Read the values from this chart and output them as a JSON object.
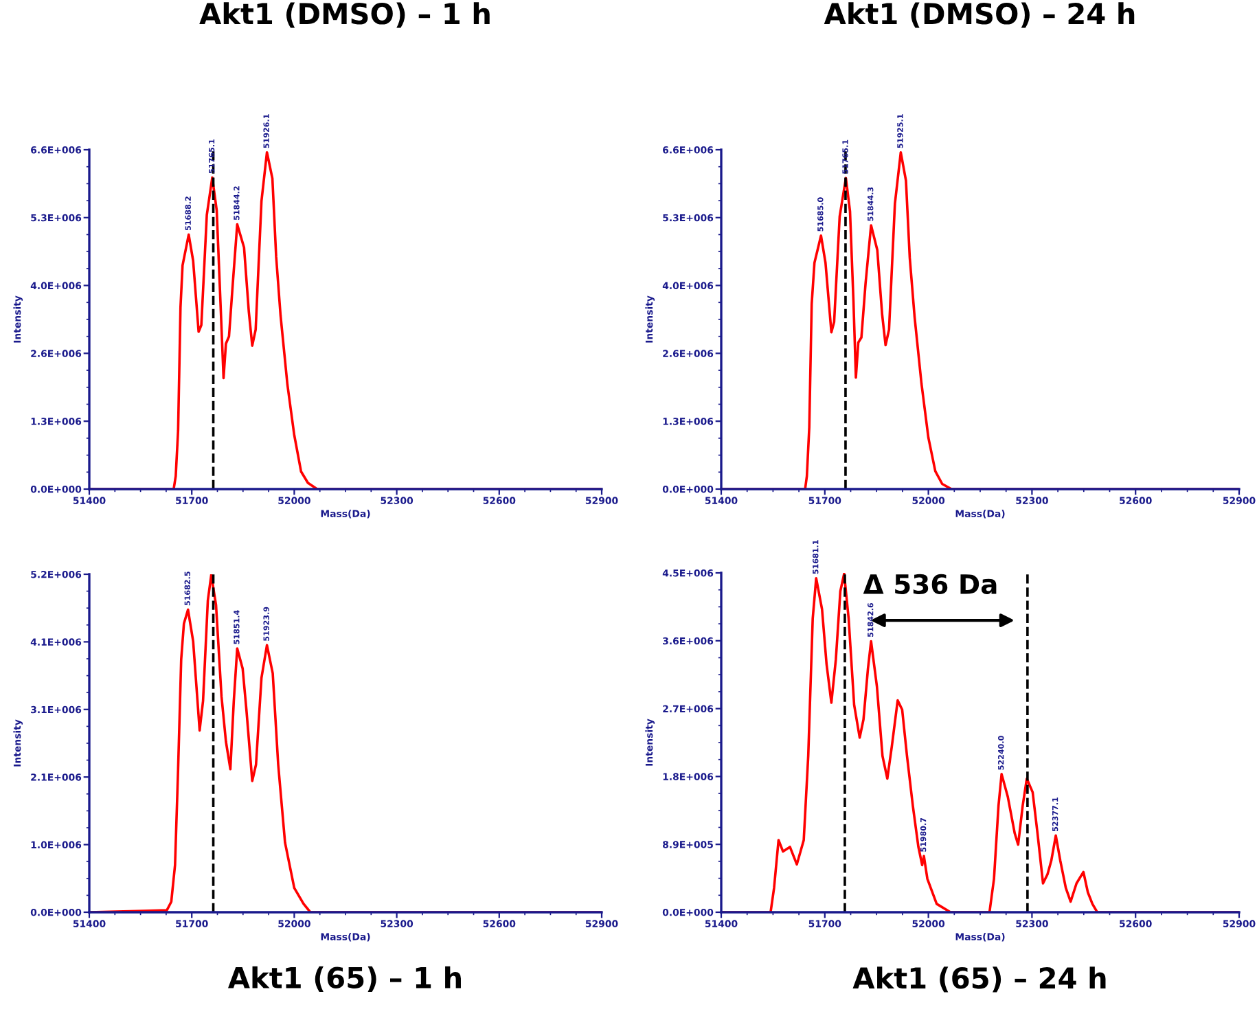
{
  "chart_data": [
    {
      "type": "line",
      "title": "Akt1 (DMSO) – 1 h",
      "xlabel": "Mass(Da)",
      "ylabel": "Intensity",
      "x": [
        51400,
        51647,
        51653,
        51660,
        51667,
        51673,
        51691,
        51704,
        51720,
        51728,
        51744,
        51760,
        51773,
        51784,
        51793,
        51800,
        51809,
        51820,
        51833,
        51853,
        51867,
        51877,
        51887,
        51904,
        51920,
        51936,
        51947,
        51960,
        51980,
        52000,
        52020,
        52040,
        52067,
        52900
      ],
      "series": [
        {
          "color": "#ff0000",
          "values": [
            0,
            0,
            250000.0,
            1140000.0,
            3540000.0,
            4350000.0,
            4950000.0,
            4440000.0,
            3060000.0,
            3190000.0,
            5330000.0,
            6060000.0,
            5420000.0,
            3630000.0,
            2160000.0,
            2830000.0,
            2970000.0,
            3990000.0,
            5150000.0,
            4700000.0,
            3450000.0,
            2790000.0,
            3100000.0,
            5600000.0,
            6550000.0,
            6040000.0,
            4520000.0,
            3370000.0,
            2030000.0,
            1050000.0,
            340000.0,
            120000.0,
            0,
            0
          ]
        }
      ],
      "xlim": [
        51400,
        52900
      ],
      "xticks": [
        51400,
        51700,
        52000,
        52300,
        52600,
        52900
      ],
      "ylim": [
        0,
        6600000.0
      ],
      "yticks": [
        {
          "value": 0,
          "label": "0.0E+000"
        },
        {
          "value": 1320000.0,
          "label": "1.3E+006"
        },
        {
          "value": 2640000.0,
          "label": "2.6E+006"
        },
        {
          "value": 3960000.0,
          "label": "4.0E+006"
        },
        {
          "value": 5280000.0,
          "label": "5.3E+006"
        },
        {
          "value": 6600000.0,
          "label": "6.6E+006"
        }
      ],
      "ref_lines": [
        {
          "axis": "x",
          "value": 51763,
          "color": "#000000",
          "line_style": "dashed"
        }
      ],
      "annotations": [
        {
          "text": "51688.2",
          "x": 51691,
          "y": 4950000.0
        },
        {
          "text": "51765.1",
          "x": 51760,
          "y": 6060000.0
        },
        {
          "text": "51844.2",
          "x": 51833,
          "y": 5150000.0
        },
        {
          "text": "51926.1",
          "x": 51920,
          "y": 6550000.0
        }
      ]
    },
    {
      "type": "line",
      "title": "Akt1 (DMSO) – 24 h",
      "xlabel": "Mass(Da)",
      "ylabel": "Intensity",
      "x": [
        51400,
        51643,
        51648,
        51655,
        51662,
        51670,
        51689,
        51702,
        51719,
        51727,
        51743,
        51761,
        51773,
        51783,
        51790,
        51797,
        51806,
        51818,
        51834,
        51852,
        51866,
        51876,
        51886,
        51903,
        51920,
        51935,
        51946,
        51960,
        51980,
        52000,
        52020,
        52040,
        52067,
        52900
      ],
      "series": [
        {
          "color": "#ff0000",
          "values": [
            0,
            0,
            250000.0,
            1200000.0,
            3600000.0,
            4400000.0,
            4930000.0,
            4400000.0,
            3050000.0,
            3250000.0,
            5300000.0,
            6050000.0,
            5400000.0,
            3650000.0,
            2170000.0,
            2850000.0,
            2950000.0,
            4000000.0,
            5130000.0,
            4650000.0,
            3400000.0,
            2800000.0,
            3100000.0,
            5550000.0,
            6550000.0,
            6000000.0,
            4500000.0,
            3350000.0,
            2050000.0,
            1000000.0,
            350000.0,
            100000.0,
            0,
            0
          ]
        }
      ],
      "xlim": [
        51400,
        52900
      ],
      "xticks": [
        51400,
        51700,
        52000,
        52300,
        52600,
        52900
      ],
      "ylim": [
        0,
        6600000.0
      ],
      "yticks": [
        {
          "value": 0,
          "label": "0.0E+000"
        },
        {
          "value": 1320000.0,
          "label": "1.3E+006"
        },
        {
          "value": 2640000.0,
          "label": "2.6E+006"
        },
        {
          "value": 3960000.0,
          "label": "4.0E+006"
        },
        {
          "value": 5280000.0,
          "label": "5.3E+006"
        },
        {
          "value": 6600000.0,
          "label": "6.6E+006"
        }
      ],
      "ref_lines": [
        {
          "axis": "x",
          "value": 51760,
          "color": "#000000",
          "line_style": "dashed"
        }
      ],
      "annotations": [
        {
          "text": "51685.0",
          "x": 51689,
          "y": 4930000.0
        },
        {
          "text": "51765.1",
          "x": 51761,
          "y": 6050000.0
        },
        {
          "text": "51844.3",
          "x": 51834,
          "y": 5130000.0
        },
        {
          "text": "51925.1",
          "x": 51920,
          "y": 6550000.0
        }
      ]
    },
    {
      "type": "line",
      "title": "Akt1 (65) – 1 h",
      "xlabel": "Mass(Da)",
      "ylabel": "Intensity",
      "x": [
        51400,
        51560,
        51627,
        51640,
        51651,
        51660,
        51669,
        51677,
        51689,
        51704,
        51723,
        51733,
        51747,
        51757,
        51771,
        51787,
        51800,
        51813,
        51823,
        51833,
        51849,
        51860,
        51877,
        51888,
        51904,
        51920,
        51937,
        51953,
        51973,
        52000,
        52027,
        52047,
        52900
      ],
      "series": [
        {
          "color": "#ff0000",
          "values": [
            0,
            20000.0,
            30000.0,
            160000.0,
            720000.0,
            2180000.0,
            3850000.0,
            4400000.0,
            4610000.0,
            4130000.0,
            2770000.0,
            3220000.0,
            4750000.0,
            5140000.0,
            4680000.0,
            3290000.0,
            2600000.0,
            2180000.0,
            3220000.0,
            4020000.0,
            3710000.0,
            3080000.0,
            2000000.0,
            2250000.0,
            3570000.0,
            4070000.0,
            3640000.0,
            2250000.0,
            1060000.0,
            370000.0,
            130000.0,
            0,
            0
          ]
        }
      ],
      "xlim": [
        51400,
        52900
      ],
      "xticks": [
        51400,
        51700,
        52000,
        52300,
        52600,
        52900
      ],
      "ylim": [
        0,
        5150000.0
      ],
      "yticks": [
        {
          "value": 0,
          "label": "0.0E+000"
        },
        {
          "value": 1030000.0,
          "label": "1.0E+006"
        },
        {
          "value": 2060000.0,
          "label": "2.1E+006"
        },
        {
          "value": 3090000.0,
          "label": "3.1E+006"
        },
        {
          "value": 4120000.0,
          "label": "4.1E+006"
        },
        {
          "value": 5150000.0,
          "label": "5.2E+006"
        }
      ],
      "ref_lines": [
        {
          "axis": "x",
          "value": 51763,
          "color": "#000000",
          "line_style": "dashed"
        }
      ],
      "annotations": [
        {
          "text": "51682.5",
          "x": 51689,
          "y": 4610000.0
        },
        {
          "text": "51851.4",
          "x": 51833,
          "y": 4020000.0
        },
        {
          "text": "51923.9",
          "x": 51920,
          "y": 4070000.0
        }
      ]
    },
    {
      "type": "line",
      "title": "Akt1 (65) – 24 h",
      "xlabel": "Mass(Da)",
      "ylabel": "Intensity",
      "x": [
        51400,
        51543,
        51553,
        51566,
        51579,
        51599,
        51619,
        51639,
        51652,
        51665,
        51675,
        51692,
        51705,
        51719,
        51732,
        51745,
        51756,
        51769,
        51785,
        51801,
        51812,
        51825,
        51834,
        51851,
        51867,
        51881,
        51894,
        51911,
        51924,
        51938,
        51955,
        51971,
        51982,
        51987,
        51997,
        52024,
        52064,
        52177,
        52190,
        52203,
        52212,
        52230,
        52250,
        52260,
        52273,
        52285,
        52302,
        52316,
        52332,
        52345,
        52356,
        52369,
        52382,
        52398,
        52412,
        52429,
        52449,
        52462,
        52475,
        52489,
        52900
      ],
      "series": [
        {
          "color": "#ff0000",
          "values": [
            0,
            0,
            320000.0,
            950000.0,
            800000.0,
            860000.0,
            630000.0,
            950000.0,
            2060000.0,
            3870000.0,
            4400000.0,
            3990000.0,
            3270000.0,
            2760000.0,
            3330000.0,
            4230000.0,
            4460000.0,
            3870000.0,
            2730000.0,
            2300000.0,
            2540000.0,
            3210000.0,
            3570000.0,
            2970000.0,
            2060000.0,
            1760000.0,
            2180000.0,
            2790000.0,
            2670000.0,
            2060000.0,
            1400000.0,
            860000.0,
            620000.0,
            740000.0,
            440000.0,
            110000.0,
            0,
            0,
            440000.0,
            1400000.0,
            1820000.0,
            1520000.0,
            1040000.0,
            890000.0,
            1400000.0,
            1760000.0,
            1580000.0,
            1040000.0,
            380000.0,
            500000.0,
            680000.0,
            1010000.0,
            680000.0,
            320000.0,
            140000.0,
            380000.0,
            530000.0,
            260000.0,
            110000.0,
            0,
            0
          ]
        }
      ],
      "xlim": [
        51400,
        52900
      ],
      "xticks": [
        51400,
        51700,
        52000,
        52300,
        52600,
        52900
      ],
      "ylim": [
        0,
        4470000.0
      ],
      "yticks": [
        {
          "value": 0,
          "label": "0.0E+000"
        },
        {
          "value": 894000.0,
          "label": "8.9E+005"
        },
        {
          "value": 1788000.0,
          "label": "1.8E+006"
        },
        {
          "value": 2682000.0,
          "label": "2.7E+006"
        },
        {
          "value": 3576000.0,
          "label": "3.6E+006"
        },
        {
          "value": 4470000.0,
          "label": "4.5E+006"
        }
      ],
      "ref_lines": [
        {
          "axis": "x",
          "value": 51758,
          "color": "#000000",
          "line_style": "dashed"
        },
        {
          "axis": "x",
          "value": 52287,
          "color": "#000000",
          "line_style": "dashed"
        }
      ],
      "annotations": [
        "Δ 536 Da",
        {
          "text": "51681.1",
          "x": 51675,
          "y": 4400000.0
        },
        {
          "text": "51842.6",
          "x": 51834,
          "y": 3570000.0
        },
        {
          "text": "51980.7",
          "x": 51987,
          "y": 740000.0
        },
        {
          "text": "52240.0",
          "x": 52212,
          "y": 1820000.0
        },
        {
          "text": "52377.1",
          "x": 52369,
          "y": 1010000.0
        }
      ]
    }
  ]
}
